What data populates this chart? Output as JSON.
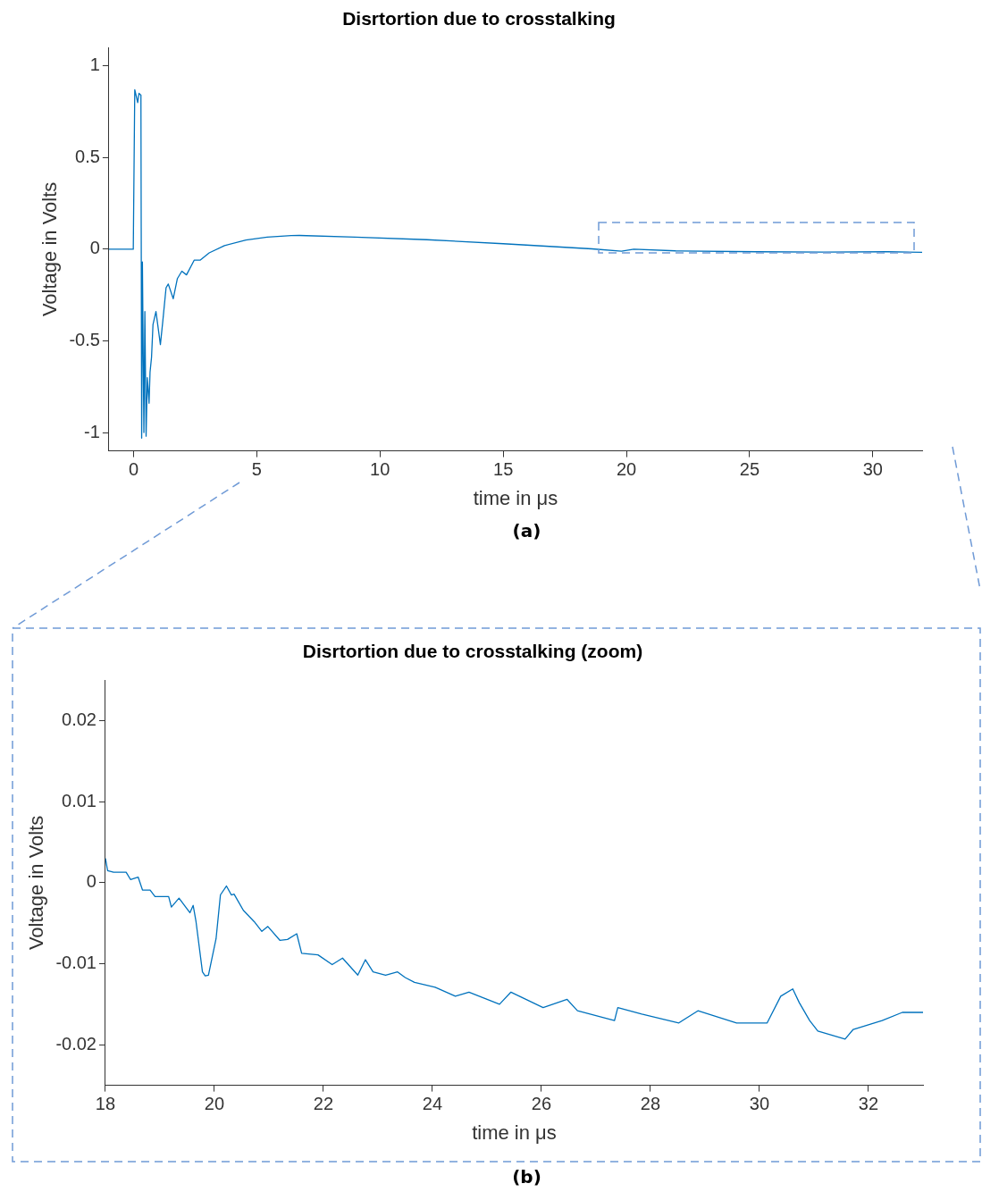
{
  "chart_data": [
    {
      "type": "line",
      "title": "Disrtortion due to crosstalking",
      "xlabel": "time in μs",
      "ylabel": "Voltage in Volts",
      "annotations": [
        "(a)"
      ],
      "color": "#0072bd",
      "x": [
        -1,
        -0.01,
        0.05,
        0.17,
        0.22,
        0.3,
        0.33,
        0.36,
        0.42,
        0.46,
        0.51,
        0.56,
        0.63,
        0.67,
        0.73,
        0.79,
        0.91,
        1.09,
        1.19,
        1.32,
        1.41,
        1.61,
        1.78,
        1.96,
        2.15,
        2.46,
        2.7,
        3.07,
        3.69,
        4.56,
        5.42,
        6.4,
        6.73,
        9,
        11.9,
        15,
        18.6,
        19.8,
        20.3,
        22,
        25.3,
        28,
        30.6,
        32
      ],
      "values": [
        0,
        0,
        0.87,
        0.8,
        0.85,
        0.84,
        -1.03,
        -0.07,
        -1.0,
        -0.34,
        -1.02,
        -0.7,
        -0.84,
        -0.67,
        -0.59,
        -0.41,
        -0.34,
        -0.52,
        -0.39,
        -0.21,
        -0.19,
        -0.27,
        -0.16,
        -0.12,
        -0.14,
        -0.06,
        -0.06,
        -0.02,
        0.02,
        0.05,
        0.066,
        0.074,
        0.075,
        0.066,
        0.052,
        0.03,
        0.002,
        -0.011,
        0,
        -0.009,
        -0.014,
        -0.016,
        -0.014,
        -0.017
      ],
      "xlim": [
        -1,
        32
      ],
      "ylim": [
        -1.1,
        1.1
      ],
      "xticks": [
        0,
        5,
        10,
        15,
        20,
        25,
        30
      ],
      "yticks": [
        -1,
        -0.5,
        0,
        0.5,
        1
      ]
    },
    {
      "type": "line",
      "title": "Disrtortion due to crosstalking (zoom)",
      "xlabel": "time in μs",
      "ylabel": "Voltage in Volts",
      "annotations": [
        "(b)"
      ],
      "color": "#0072bd",
      "x": [
        18.0,
        18.04,
        18.15,
        18.38,
        18.46,
        18.6,
        18.68,
        18.82,
        18.91,
        19.16,
        19.21,
        19.35,
        19.55,
        19.61,
        19.66,
        19.78,
        19.83,
        19.89,
        20.03,
        20.11,
        20.22,
        20.31,
        20.36,
        20.53,
        20.73,
        20.87,
        20.98,
        21.2,
        21.34,
        21.51,
        21.6,
        21.9,
        22.16,
        22.35,
        22.63,
        22.77,
        22.91,
        23.14,
        23.36,
        23.5,
        23.67,
        24.05,
        24.42,
        24.67,
        25.23,
        25.44,
        26.03,
        26.47,
        26.66,
        27.34,
        27.4,
        27.84,
        28.52,
        28.87,
        29.58,
        30.14,
        30.39,
        30.61,
        30.73,
        30.92,
        31.07,
        31.57,
        31.72,
        32.25,
        32.62,
        33.0
      ],
      "values": [
        0.003,
        0.0015,
        0.0013,
        0.0013,
        0.0004,
        0.0007,
        -0.0009,
        -0.0009,
        -0.0017,
        -0.0017,
        -0.003,
        -0.0019,
        -0.0037,
        -0.0028,
        -0.0047,
        -0.011,
        -0.0115,
        -0.0114,
        -0.0069,
        -0.0015,
        -0.0004,
        -0.0015,
        -0.0014,
        -0.0034,
        -0.0048,
        -0.006,
        -0.0054,
        -0.0071,
        -0.007,
        -0.0063,
        -0.0087,
        -0.0089,
        -0.0101,
        -0.0093,
        -0.0114,
        -0.0095,
        -0.011,
        -0.0114,
        -0.011,
        -0.0117,
        -0.0123,
        -0.0129,
        -0.014,
        -0.0135,
        -0.015,
        -0.0135,
        -0.0154,
        -0.0144,
        -0.0158,
        -0.017,
        -0.0154,
        -0.0162,
        -0.0173,
        -0.0158,
        -0.0173,
        -0.0173,
        -0.014,
        -0.0131,
        -0.0148,
        -0.017,
        -0.0183,
        -0.0193,
        -0.0181,
        -0.017,
        -0.016,
        -0.016
      ],
      "xlim": [
        18,
        33
      ],
      "ylim": [
        -0.025,
        0.025
      ],
      "xticks": [
        18,
        20,
        22,
        24,
        26,
        28,
        30,
        32
      ],
      "yticks": [
        -0.02,
        -0.01,
        0,
        0.01,
        0.02
      ]
    }
  ]
}
